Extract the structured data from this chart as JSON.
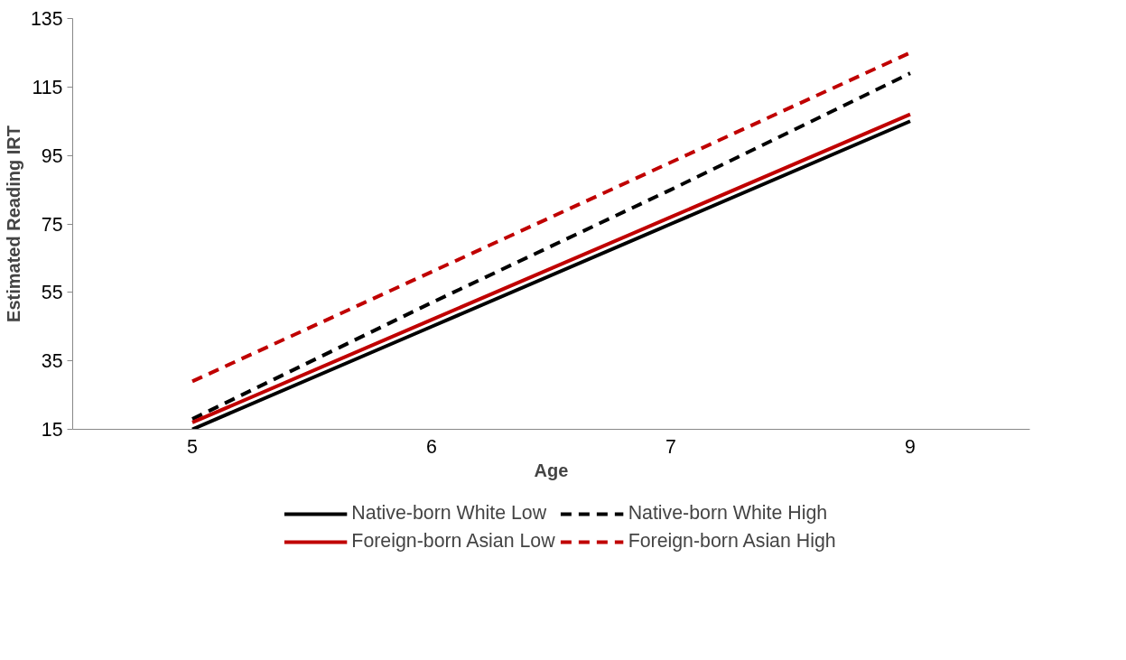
{
  "chart_data": {
    "type": "line",
    "xlabel": "Age",
    "ylabel": "Estimated Reading IRT",
    "categories": [
      "5",
      "6",
      "7",
      "9"
    ],
    "ylim": [
      15,
      135
    ],
    "yticks": [
      15,
      35,
      55,
      75,
      95,
      115,
      135
    ],
    "grid": false,
    "legend": "bottom",
    "marker": "none",
    "series": [
      {
        "name": "Native-born White Low",
        "color": "#000000",
        "line_style": "solid",
        "values": [
          15,
          45,
          75,
          105
        ]
      },
      {
        "name": "Native-born White High",
        "color": "#000000",
        "line_style": "dashed",
        "values": [
          18,
          52,
          85,
          119
        ]
      },
      {
        "name": "Foreign-born Asian Low",
        "color": "#c00000",
        "line_style": "solid",
        "values": [
          17,
          47,
          77,
          107
        ]
      },
      {
        "name": "Foreign-born Asian High",
        "color": "#c00000",
        "line_style": "dashed",
        "values": [
          29,
          61,
          93,
          125
        ]
      }
    ]
  }
}
